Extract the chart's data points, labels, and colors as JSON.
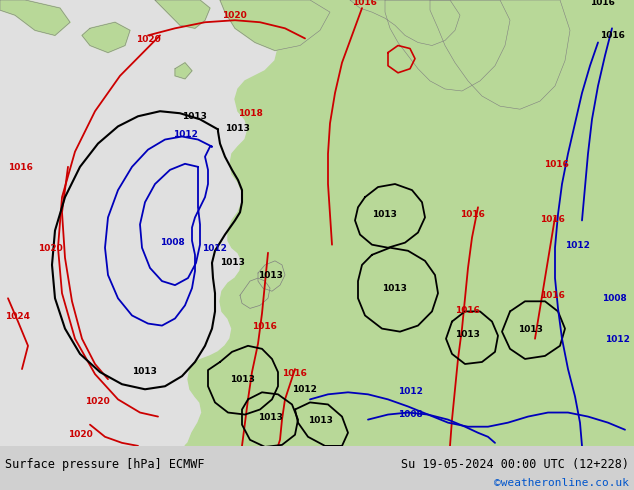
{
  "title_left": "Surface pressure [hPa] ECMWF",
  "title_right": "Su 19-05-2024 00:00 UTC (12+228)",
  "credit": "©weatheronline.co.uk",
  "ocean_color": "#e0e0e0",
  "land_color": "#b8d898",
  "coast_color": "#808080",
  "footer_bg": "#d0d0d0",
  "red": "#cc0000",
  "black": "#000000",
  "blue": "#0000bb",
  "figsize": [
    6.34,
    4.9
  ],
  "dpi": 100
}
